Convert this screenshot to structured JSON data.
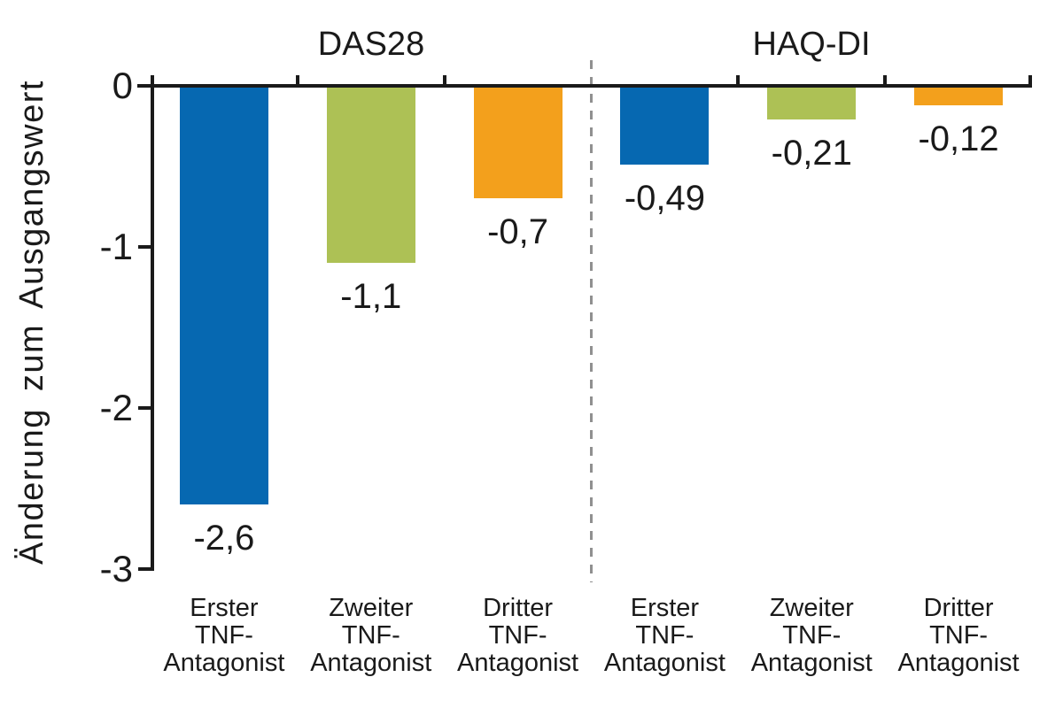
{
  "chart_data": {
    "type": "bar",
    "title": "",
    "ylabel": "Änderung zum Ausgangswert",
    "xlabel": "",
    "ylim": [
      -3,
      0
    ],
    "grid": false,
    "legend": "none",
    "yticks": [
      0,
      -1,
      -2,
      -3
    ],
    "ytick_labels": [
      "0",
      "-1",
      "-2",
      "-3"
    ],
    "divider_style": "dashed-vertical-line-between-groups",
    "groups": [
      {
        "title": "DAS28",
        "bars": [
          {
            "category_lines": [
              "Erster",
              "TNF-",
              "Antagonist"
            ],
            "value": -2.6,
            "label": "-2,6",
            "color": "#0668b1"
          },
          {
            "category_lines": [
              "Zweiter",
              "TNF-",
              "Antagonist"
            ],
            "value": -1.1,
            "label": "-1,1",
            "color": "#adc155"
          },
          {
            "category_lines": [
              "Dritter",
              "TNF-",
              "Antagonist"
            ],
            "value": -0.7,
            "label": "-0,7",
            "color": "#f3a01c"
          }
        ]
      },
      {
        "title": "HAQ-DI",
        "bars": [
          {
            "category_lines": [
              "Erster",
              "TNF-",
              "Antagonist"
            ],
            "value": -0.49,
            "label": "-0,49",
            "color": "#0668b1"
          },
          {
            "category_lines": [
              "Zweiter",
              "TNF-",
              "Antagonist"
            ],
            "value": -0.21,
            "label": "-0,21",
            "color": "#adc155"
          },
          {
            "category_lines": [
              "Dritter",
              "TNF-",
              "Antagonist"
            ],
            "value": -0.12,
            "label": "-0,12",
            "color": "#f3a01c"
          }
        ]
      }
    ],
    "colors": {
      "blue": "#0668b1",
      "green": "#adc155",
      "orange": "#f3a01c",
      "axis": "#1a1a1a",
      "text": "#1a1a1a",
      "divider": "#909090",
      "background": "#ffffff"
    }
  }
}
